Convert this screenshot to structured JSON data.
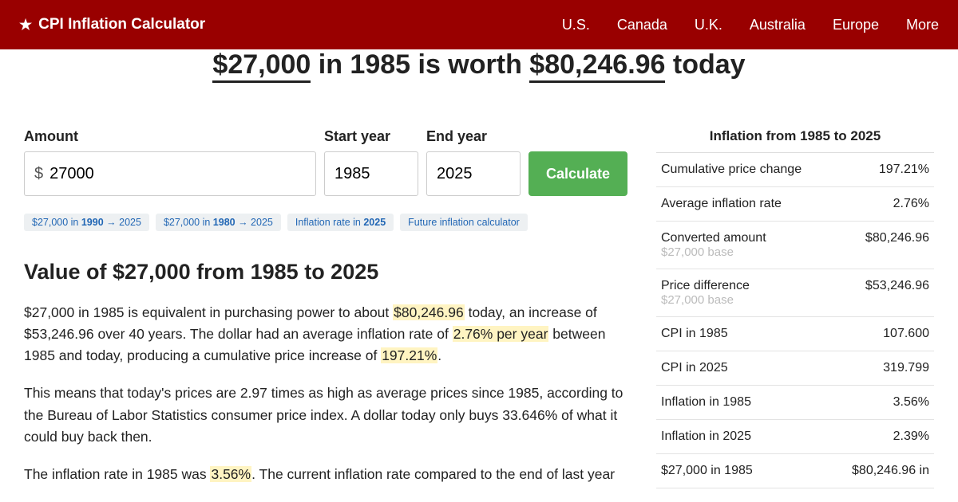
{
  "header": {
    "brand": "CPI Inflation Calculator",
    "nav": [
      "U.S.",
      "Canada",
      "U.K.",
      "Australia",
      "Europe",
      "More"
    ]
  },
  "title": {
    "amount": "$27,000",
    "mid1": " in 1985 is worth ",
    "result": "$80,246.96",
    "mid2": " today"
  },
  "form": {
    "amount_label": "Amount",
    "amount_prefix": "$",
    "amount_value": "27000",
    "start_label": "Start year",
    "start_value": "1985",
    "end_label": "End year",
    "end_value": "2025",
    "button": "Calculate"
  },
  "chips": [
    {
      "pre": "$27,000 in ",
      "bold": "1990",
      "post": " → 2025"
    },
    {
      "pre": "$27,000 in ",
      "bold": "1980",
      "post": " → 2025"
    },
    {
      "pre": "Inflation rate in ",
      "bold": "2025",
      "post": ""
    },
    {
      "pre": "Future inflation calculator",
      "bold": "",
      "post": ""
    }
  ],
  "section_heading": "Value of $27,000 from 1985 to 2025",
  "para1": {
    "a": "$27,000 in 1985 is equivalent in purchasing power to about ",
    "h1": "$80,246.96",
    "b": " today, an increase of $53,246.96 over 40 years. The dollar had an average inflation rate of ",
    "h2": "2.76% per year",
    "c": " between 1985 and today, producing a cumulative price increase of ",
    "h3": "197.21%",
    "d": "."
  },
  "para2": "This means that today's prices are 2.97 times as high as average prices since 1985, according to the Bureau of Labor Statistics consumer price index. A dollar today only buys 33.646% of what it could buy back then.",
  "para3": {
    "a": "The inflation rate in 1985 was ",
    "h": "3.56%",
    "b": ". The current inflation rate compared to the end of last year"
  },
  "side": {
    "title": "Inflation from 1985 to 2025",
    "rows": [
      {
        "label": "Cumulative price change",
        "sub": "",
        "val": "197.21%"
      },
      {
        "label": "Average inflation rate",
        "sub": "",
        "val": "2.76%"
      },
      {
        "label": "Converted amount",
        "sub": "$27,000 base",
        "val": "$80,246.96"
      },
      {
        "label": "Price difference",
        "sub": "$27,000 base",
        "val": "$53,246.96"
      },
      {
        "label": "CPI in 1985",
        "sub": "",
        "val": "107.600"
      },
      {
        "label": "CPI in 2025",
        "sub": "",
        "val": "319.799"
      },
      {
        "label": "Inflation in 1985",
        "sub": "",
        "val": "3.56%"
      },
      {
        "label": "Inflation in 2025",
        "sub": "",
        "val": "2.39%"
      },
      {
        "label": "$27,000 in 1985",
        "sub": "",
        "val": "$80,246.96 in"
      }
    ]
  }
}
